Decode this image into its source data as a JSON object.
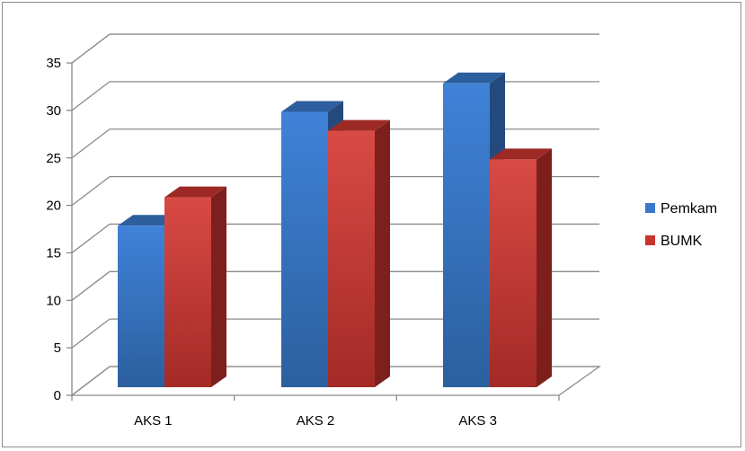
{
  "chart_data": {
    "type": "bar",
    "subtype": "3d-clustered-column",
    "categories": [
      "AKS 1",
      "AKS 2",
      "AKS 3"
    ],
    "series": [
      {
        "name": "Pemkam",
        "values": [
          17,
          29,
          32
        ],
        "color": "#3a78c9"
      },
      {
        "name": "BUMK",
        "values": [
          20,
          27,
          24
        ],
        "color": "#c9342f"
      }
    ],
    "ylim": [
      0,
      35
    ],
    "yticks": [
      0,
      5,
      10,
      15,
      20,
      25,
      30,
      35
    ],
    "grid": true,
    "legend_position": "right"
  }
}
